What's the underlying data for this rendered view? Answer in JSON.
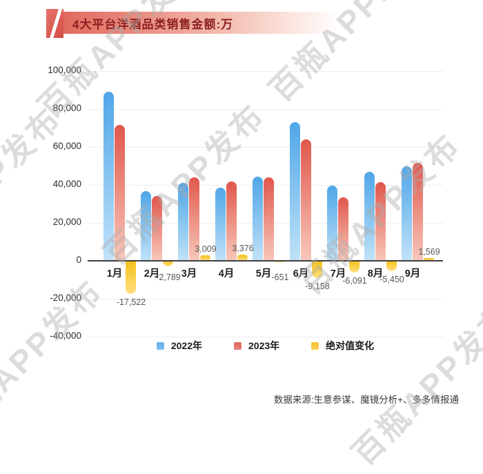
{
  "header": {
    "title": "4大平台洋酒品类销售金额:万"
  },
  "watermark": {
    "text": "百瓶APP发布"
  },
  "chart_data": {
    "type": "bar",
    "title": "4大平台洋酒品类销售金额:万",
    "unit": "万",
    "categories": [
      "1月",
      "2月",
      "3月",
      "4月",
      "5月",
      "6月",
      "7月",
      "8月",
      "9月"
    ],
    "series": [
      {
        "name": "2022年",
        "values": [
          89200,
          36900,
          41000,
          38500,
          44500,
          73000,
          39500,
          47000,
          50000
        ]
      },
      {
        "name": "2023年",
        "values": [
          71678,
          34111,
          44009,
          41876,
          43849,
          63842,
          33409,
          41550,
          51569
        ]
      },
      {
        "name": "绝对值变化",
        "values": [
          -17522,
          -2789,
          3009,
          3376,
          -651,
          -9158,
          -6091,
          -5450,
          1569
        ],
        "labels": [
          "-17,522",
          "-2,789",
          "3,009",
          "3,376",
          "-651",
          "-9,158",
          "-6,091",
          "-5,450",
          "1,569"
        ]
      }
    ],
    "y_ticks": [
      {
        "value": 100000,
        "label": "100,000"
      },
      {
        "value": 80000,
        "label": "80,000"
      },
      {
        "value": 60000,
        "label": "60,000"
      },
      {
        "value": 40000,
        "label": "40,000"
      },
      {
        "value": 20000,
        "label": "20,000"
      },
      {
        "value": 0,
        "label": "0"
      },
      {
        "value": -20000,
        "label": "-20,000"
      },
      {
        "value": -40000,
        "label": "-40,000"
      }
    ],
    "ylim": [
      -40000,
      100000
    ],
    "grid": true,
    "legend_position": "bottom"
  },
  "legend": {
    "items": [
      {
        "label": "2022年",
        "color": "#63aee8"
      },
      {
        "label": "2023年",
        "color": "#e2645a"
      },
      {
        "label": "绝对值变化",
        "color": "#f6c32e"
      }
    ]
  },
  "colors": {
    "bar_2022_top": "#4fa6e8",
    "bar_2022_bottom": "#c0e2f8",
    "bar_2023_top": "#e1574c",
    "bar_2023_bottom": "#f7c8ba",
    "bar_change_top": "#f4c019",
    "bar_change_bottom": "#ffe081",
    "axis_line": "#3f3f3f",
    "grid_line": "#ededed",
    "title_text": "#8c2022"
  },
  "footer": {
    "source": "数据来源:生意参谋、魔镜分析+、多多情报通"
  }
}
